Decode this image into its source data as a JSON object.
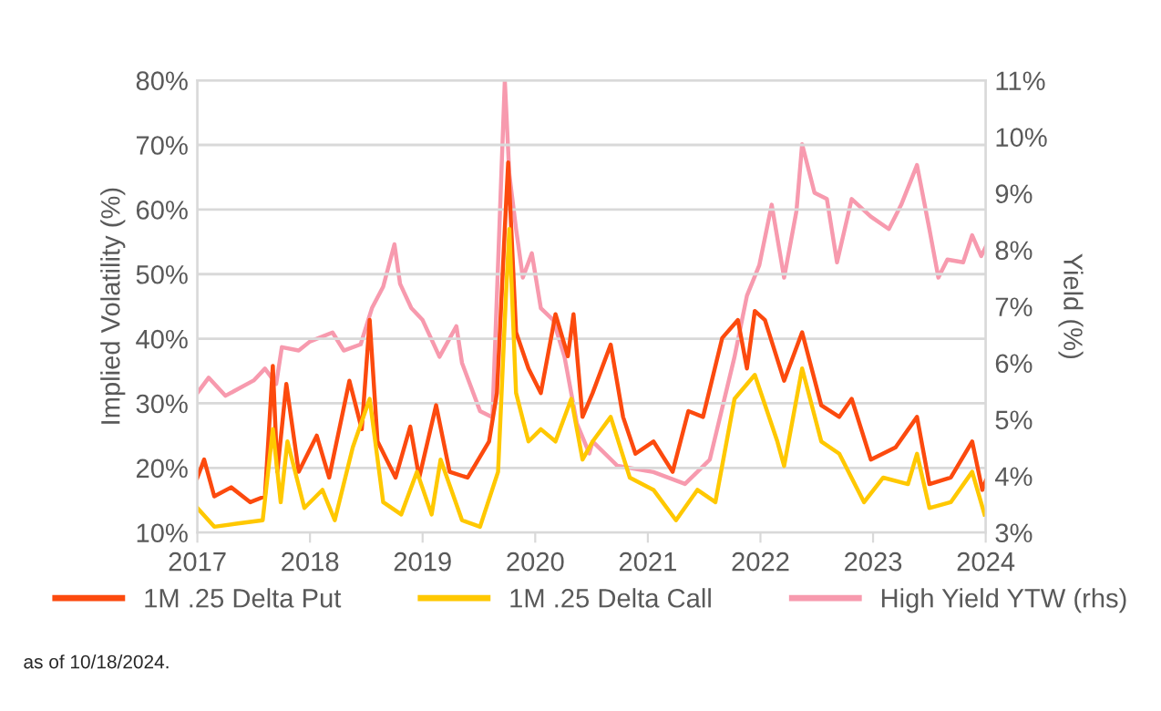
{
  "chart_data": {
    "type": "line",
    "ylabel": "Implied Volatility (%)",
    "y2label": "Yield (%)",
    "xlim": [
      2017,
      2024
    ],
    "xticks": [
      2017,
      2018,
      2019,
      2020,
      2021,
      2022,
      2023,
      2024
    ],
    "ylim": [
      10,
      80
    ],
    "yticks": [
      {
        "value": 10,
        "label": "10%"
      },
      {
        "value": 20,
        "label": "20%"
      },
      {
        "value": 30,
        "label": "30%"
      },
      {
        "value": 40,
        "label": "40%"
      },
      {
        "value": 50,
        "label": "50%"
      },
      {
        "value": 60,
        "label": "60%"
      },
      {
        "value": 70,
        "label": "70%"
      },
      {
        "value": 80,
        "label": "80%"
      }
    ],
    "y2lim": [
      3,
      11
    ],
    "y2ticks": [
      {
        "value": 3,
        "label": "3%"
      },
      {
        "value": 4,
        "label": "4%"
      },
      {
        "value": 5,
        "label": "5%"
      },
      {
        "value": 6,
        "label": "6%"
      },
      {
        "value": 7,
        "label": "7%"
      },
      {
        "value": 8,
        "label": "8%"
      },
      {
        "value": 9,
        "label": "9%"
      },
      {
        "value": 10,
        "label": "10%"
      },
      {
        "value": 11,
        "label": "11%"
      }
    ],
    "grid": "y",
    "legend": "bottom",
    "annotations": [
      "as of 10/18/2024."
    ],
    "series": [
      {
        "name": "1M .25 Delta Put",
        "color": "#fc4a0e",
        "x": [
          2017.0,
          2017.06,
          2017.15,
          2017.3,
          2017.47,
          2017.6,
          2017.67,
          2017.71,
          2017.79,
          2017.9,
          2018.06,
          2018.17,
          2018.35,
          2018.46,
          2018.53,
          2018.6,
          2018.76,
          2018.89,
          2018.97,
          2019.12,
          2019.24,
          2019.4,
          2019.59,
          2019.66,
          2019.73,
          2019.76,
          2019.83,
          2019.94,
          2020.05,
          2020.18,
          2020.29,
          2020.34,
          2020.42,
          2020.51,
          2020.67,
          2020.78,
          2020.89,
          2021.05,
          2021.22,
          2021.36,
          2021.49,
          2021.66,
          2021.8,
          2021.88,
          2021.95,
          2022.04,
          2022.21,
          2022.37,
          2022.54,
          2022.7,
          2022.81,
          2022.98,
          2023.2,
          2023.39,
          2023.5,
          2023.69,
          2023.88,
          2023.97,
          2024.0
        ],
        "values": [
          18.5,
          21.3,
          15.6,
          17,
          14.7,
          15.6,
          35.8,
          19.4,
          33,
          19.4,
          25,
          18.5,
          33.5,
          26,
          42.9,
          24.1,
          18.5,
          26.4,
          18.5,
          29.7,
          19.4,
          18.5,
          24.1,
          31.6,
          57,
          67.3,
          41,
          35.4,
          31.6,
          43.8,
          37.3,
          43.8,
          27.9,
          31.6,
          39.1,
          27.9,
          22.2,
          24.1,
          19.4,
          28.8,
          27.9,
          40.1,
          42.9,
          35.4,
          44.3,
          42.9,
          33.5,
          41,
          29.7,
          27.9,
          30.7,
          21.3,
          23.2,
          27.9,
          17.5,
          18.5,
          24.1,
          16.6,
          18
        ]
      },
      {
        "name": "1M .25 Delta Call",
        "color": "#ffc800",
        "x": [
          2017.0,
          2017.15,
          2017.36,
          2017.58,
          2017.67,
          2017.74,
          2017.8,
          2017.95,
          2018.11,
          2018.22,
          2018.38,
          2018.53,
          2018.65,
          2018.81,
          2018.95,
          2019.08,
          2019.16,
          2019.35,
          2019.51,
          2019.67,
          2019.74,
          2019.77,
          2019.83,
          2019.94,
          2020.05,
          2020.18,
          2020.32,
          2020.42,
          2020.51,
          2020.67,
          2020.84,
          2021.05,
          2021.25,
          2021.44,
          2021.6,
          2021.77,
          2021.95,
          2022.15,
          2022.21,
          2022.37,
          2022.54,
          2022.7,
          2022.92,
          2023.09,
          2023.31,
          2023.39,
          2023.5,
          2023.69,
          2023.88,
          2023.99
        ],
        "values": [
          13.8,
          10.9,
          11.4,
          11.9,
          26,
          14.7,
          24.1,
          13.8,
          16.6,
          11.9,
          23.2,
          30.7,
          14.7,
          12.8,
          19.4,
          12.8,
          21.3,
          11.9,
          10.9,
          19.4,
          46.7,
          57,
          31.6,
          24.1,
          26,
          24.1,
          30.7,
          21.3,
          24.1,
          27.9,
          18.5,
          16.6,
          11.9,
          16.6,
          14.7,
          30.7,
          34.4,
          24.1,
          20.3,
          35.4,
          24.1,
          22.2,
          14.7,
          18.5,
          17.5,
          22.2,
          13.8,
          14.7,
          19.4,
          12.8
        ]
      },
      {
        "name": "High Yield YTW (rhs)",
        "color": "#f79aae",
        "axis": "y2",
        "x": [
          2017.0,
          2017.1,
          2017.25,
          2017.5,
          2017.6,
          2017.7,
          2017.75,
          2017.9,
          2018.0,
          2018.2,
          2018.3,
          2018.45,
          2018.55,
          2018.65,
          2018.75,
          2018.8,
          2018.9,
          2019.0,
          2019.15,
          2019.3,
          2019.35,
          2019.51,
          2019.62,
          2019.73,
          2019.77,
          2019.83,
          2019.89,
          2019.97,
          2020.05,
          2020.16,
          2020.26,
          2020.37,
          2020.48,
          2020.51,
          2020.73,
          2021.05,
          2021.33,
          2021.55,
          2021.77,
          2021.88,
          2021.99,
          2022.1,
          2022.21,
          2022.32,
          2022.37,
          2022.48,
          2022.59,
          2022.68,
          2022.81,
          2022.98,
          2023.14,
          2023.25,
          2023.39,
          2023.5,
          2023.58,
          2023.66,
          2023.8,
          2023.88,
          2023.96,
          2024.0
        ],
        "values": [
          5.47,
          5.74,
          5.42,
          5.69,
          5.9,
          5.63,
          6.28,
          6.22,
          6.38,
          6.54,
          6.22,
          6.33,
          6.97,
          7.35,
          8.1,
          7.4,
          6.97,
          6.76,
          6.11,
          6.65,
          6.0,
          5.15,
          5.04,
          11.0,
          9.34,
          8.37,
          7.51,
          7.94,
          6.97,
          6.76,
          6.11,
          4.93,
          4.4,
          4.61,
          4.18,
          4.07,
          3.86,
          4.29,
          6.11,
          7.19,
          7.73,
          8.8,
          7.51,
          8.69,
          9.87,
          9.01,
          8.9,
          7.78,
          8.9,
          8.59,
          8.37,
          8.8,
          9.5,
          8.37,
          7.51,
          7.83,
          7.78,
          8.26,
          7.89,
          8.05
        ]
      }
    ]
  }
}
